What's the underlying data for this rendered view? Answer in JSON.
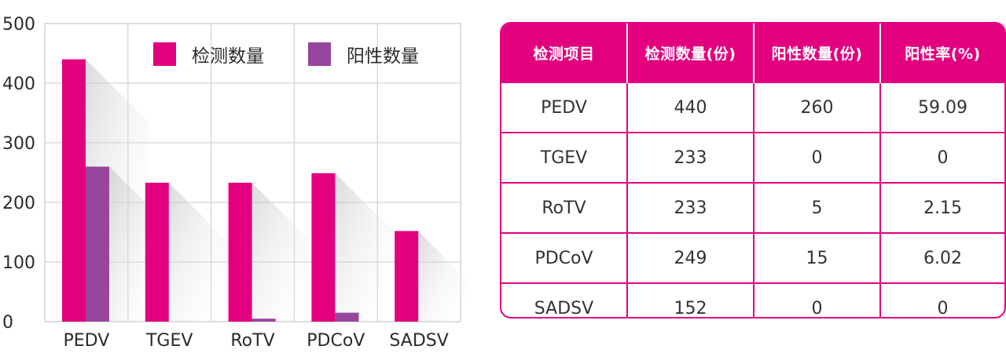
{
  "colors": {
    "detected": "#e3007f",
    "positive": "#96479c",
    "grid": "#d4d4d4",
    "table_accent": "#e3007f"
  },
  "chart_data": {
    "type": "bar",
    "title": "",
    "xlabel": "",
    "ylabel": "",
    "ylim": [
      0,
      500
    ],
    "yticks": [
      0,
      100,
      200,
      300,
      400,
      500
    ],
    "grid": true,
    "legend_position": "top-right",
    "categories": [
      "PEDV",
      "TGEV",
      "RoTV",
      "PDCoV",
      "SADSV"
    ],
    "series": [
      {
        "name": "检测数量",
        "values": [
          440,
          233,
          233,
          249,
          152
        ],
        "color": "#e3007f"
      },
      {
        "name": "阳性数量",
        "values": [
          260,
          0,
          5,
          15,
          0
        ],
        "color": "#96479c"
      }
    ]
  },
  "table": {
    "headers": [
      "检测项目",
      "检测数量(份)",
      "阳性数量(份)",
      "阳性率(%)"
    ],
    "rows": [
      [
        "PEDV",
        "440",
        "260",
        "59.09"
      ],
      [
        "TGEV",
        "233",
        "0",
        "0"
      ],
      [
        "RoTV",
        "233",
        "5",
        "2.15"
      ],
      [
        "PDCoV",
        "249",
        "15",
        "6.02"
      ],
      [
        "SADSV",
        "152",
        "0",
        "0"
      ]
    ]
  }
}
